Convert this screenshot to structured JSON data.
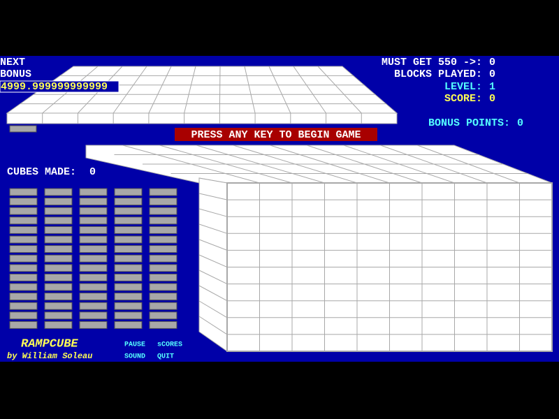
{
  "status": {
    "next_label": "NEXT",
    "bonus_label": "BONUS",
    "bonus_value": "4999.999999999999",
    "must_get_label": "MUST GET 550  ->:",
    "must_get_value": "0",
    "blocks_played_label": "BLOCKS PLAYED:",
    "blocks_played_value": "0",
    "level_label": "LEVEL:",
    "level_value": "1",
    "score_label": "SCORE:",
    "score_value": "0",
    "bonus_points_label": "BONUS POINTS:",
    "bonus_points_value": "0",
    "cubes_made_label": "CUBES MADE:",
    "cubes_made_value": "0"
  },
  "banner": "PRESS ANY KEY TO BEGIN GAME",
  "credits": {
    "title": "RAMPCUBE",
    "author": "by William Soleau"
  },
  "menu": [
    "PAUSE",
    "sCORES",
    "SOUND",
    "QUIT"
  ]
}
